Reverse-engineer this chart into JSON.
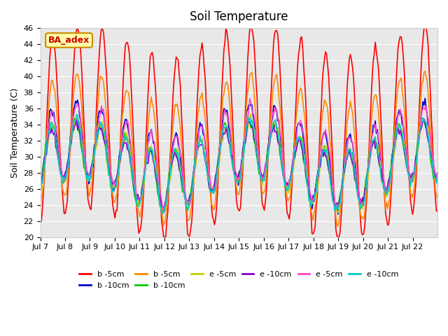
{
  "title": "Soil Temperature",
  "ylabel": "Soil Temperature (C)",
  "xlabel": "",
  "ylim": [
    20,
    46
  ],
  "yticks": [
    20,
    22,
    24,
    26,
    28,
    30,
    32,
    34,
    36,
    38,
    40,
    42,
    44,
    46
  ],
  "x_labels": [
    "Jul 7",
    "Jul 8",
    "Jul 9",
    "Jul 10",
    "Jul 11",
    "Jul 12",
    "Jul 13",
    "Jul 14",
    "Jul 15",
    "Jul 16",
    "Jul 17",
    "Jul 18",
    "Jul 19",
    "Jul 20",
    "Jul 21",
    "Jul 22"
  ],
  "n_days": 16,
  "background_color": "#e8e8e8",
  "legend_entries": [
    {
      "label": "b -5cm",
      "color": "#ff0000"
    },
    {
      "label": "b -10cm",
      "color": "#0000cc"
    },
    {
      "label": "b -5cm",
      "color": "#ff8800"
    },
    {
      "label": "b -10cm",
      "color": "#00cc00"
    },
    {
      "label": "e -5cm",
      "color": "#cccc00"
    },
    {
      "label": "e -10cm",
      "color": "#8800cc"
    },
    {
      "label": "e -5cm",
      "color": "#ff44cc"
    },
    {
      "label": "e -10cm",
      "color": "#00cccc"
    }
  ],
  "annotation_text": "BA_adex",
  "annotation_color": "#cc0000",
  "annotation_bg": "#ffffaa",
  "annotation_border": "#cc8800"
}
